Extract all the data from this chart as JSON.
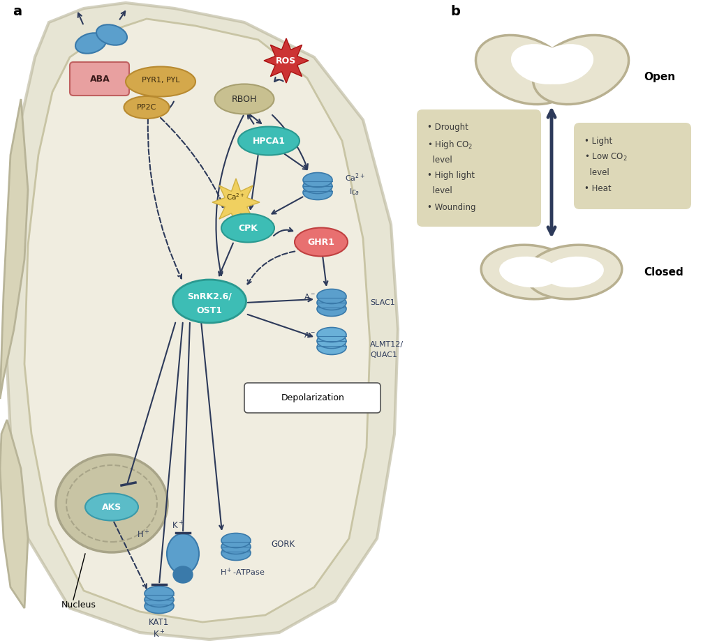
{
  "bg_color": "#ffffff",
  "cell_outer_color": "#d8d4b8",
  "cell_outer_edge": "#b8b498",
  "cell_inner_color": "#f0ede0",
  "cell_inner_edge": "#c8c4a4",
  "arrow_color": "#2d3a5a",
  "teal_color": "#3dbdb5",
  "teal_dark": "#2a9990",
  "blue_color": "#5b9fcc",
  "blue_dark": "#3a7aaa",
  "blue_light": "#6ab0d8",
  "salmon_color": "#e87070",
  "gold_color": "#d4a84b",
  "gold_dark": "#b88a30",
  "yellow_star_color": "#f0d060",
  "yellow_star_dark": "#d0b040",
  "red_star_color": "#cc3333",
  "red_star_dark": "#aa1111",
  "aba_box_color": "#e8a0a0",
  "aba_box_edge": "#c06060",
  "box_bg": "#ddd8b8",
  "nucleus_color": "#c8c4a4",
  "nucleus_border": "#a8a488",
  "aks_color": "#5bbcc8",
  "aks_dark": "#3a9aaa",
  "gc_face": "#e8e4d0",
  "gc_edge": "#b8b090",
  "white": "#ffffff",
  "black": "#000000",
  "depol_edge": "#555555",
  "panel_a": "a",
  "panel_b": "b",
  "open_label": "Open",
  "closed_label": "Closed",
  "nucleus_label": "Nucleus",
  "depol_label": "Depolarization",
  "left_box_items": [
    "Drought",
    "High CO₂",
    "level",
    "High light",
    "level",
    "Wounding"
  ],
  "right_box_items": [
    "Light",
    "Low CO₂",
    "level",
    "Heat"
  ]
}
